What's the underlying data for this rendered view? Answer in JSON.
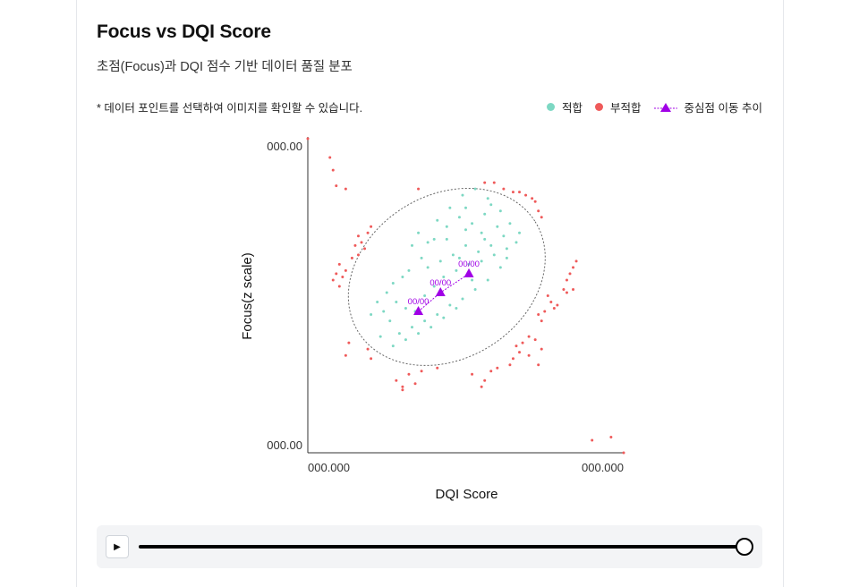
{
  "header": {
    "title": "Focus vs DQI Score",
    "subtitle": "초점(Focus)과 DQI 점수 기반 데이터 품질 분포",
    "note": "* 데이터 포인트를 선택하여 이미지를 확인할 수 있습니다."
  },
  "legend": {
    "pass_label": "적합",
    "fail_label": "부적합",
    "centroid_label": "중심점 이동 추이"
  },
  "colors": {
    "pass": "#7dd8c3",
    "fail": "#ef5a5a",
    "centroid": "#a000e6",
    "ellipse": "#666666"
  },
  "playback": {
    "play_icon": "▶",
    "progress": 1.0
  },
  "chart_data": {
    "type": "scatter",
    "title": "",
    "xlabel": "DQI Score",
    "ylabel": "Focus(z scale)",
    "x_tick_labels": [
      "000.000",
      "000.000"
    ],
    "y_tick_labels": [
      "000.00",
      "000.00"
    ],
    "xlim": [
      0,
      100
    ],
    "ylim": [
      0,
      100
    ],
    "legend_position": "top-right",
    "series": [
      {
        "name": "적합",
        "points": [
          [
            35,
            70
          ],
          [
            38,
            67
          ],
          [
            33,
            66
          ],
          [
            40,
            68
          ],
          [
            44,
            72
          ],
          [
            48,
            75
          ],
          [
            50,
            78
          ],
          [
            52,
            73
          ],
          [
            56,
            76
          ],
          [
            58,
            79
          ],
          [
            55,
            70
          ],
          [
            60,
            72
          ],
          [
            62,
            69
          ],
          [
            58,
            66
          ],
          [
            54,
            64
          ],
          [
            50,
            66
          ],
          [
            46,
            63
          ],
          [
            42,
            61
          ],
          [
            38,
            59
          ],
          [
            36,
            62
          ],
          [
            32,
            58
          ],
          [
            30,
            56
          ],
          [
            27,
            54
          ],
          [
            25,
            51
          ],
          [
            28,
            48
          ],
          [
            31,
            46
          ],
          [
            34,
            45
          ],
          [
            37,
            50
          ],
          [
            40,
            53
          ],
          [
            43,
            56
          ],
          [
            47,
            58
          ],
          [
            51,
            60
          ],
          [
            55,
            61
          ],
          [
            59,
            63
          ],
          [
            63,
            65
          ],
          [
            66,
            67
          ],
          [
            61,
            59
          ],
          [
            57,
            55
          ],
          [
            53,
            52
          ],
          [
            49,
            49
          ],
          [
            45,
            47
          ],
          [
            41,
            44
          ],
          [
            37,
            42
          ],
          [
            33,
            40
          ],
          [
            29,
            38
          ],
          [
            26,
            42
          ],
          [
            24,
            45
          ],
          [
            22,
            48
          ],
          [
            20,
            44
          ],
          [
            23,
            37
          ],
          [
            27,
            34
          ],
          [
            31,
            36
          ],
          [
            35,
            38
          ],
          [
            39,
            40
          ],
          [
            43,
            43
          ],
          [
            47,
            46
          ],
          [
            52,
            55
          ],
          [
            48,
            62
          ],
          [
            44,
            68
          ],
          [
            41,
            74
          ],
          [
            45,
            78
          ],
          [
            49,
            82
          ],
          [
            53,
            84
          ],
          [
            57,
            81
          ],
          [
            61,
            77
          ],
          [
            64,
            73
          ],
          [
            67,
            70
          ],
          [
            63,
            62
          ],
          [
            56,
            68
          ],
          [
            50,
            71
          ]
        ]
      },
      {
        "name": "부적합",
        "points": [
          [
            0,
            100
          ],
          [
            7,
            94
          ],
          [
            8,
            90
          ],
          [
            9,
            85
          ],
          [
            12,
            84
          ],
          [
            35,
            84
          ],
          [
            56,
            86
          ],
          [
            59,
            86
          ],
          [
            62,
            84
          ],
          [
            65,
            83
          ],
          [
            67,
            83
          ],
          [
            69,
            82
          ],
          [
            71,
            81
          ],
          [
            72,
            80
          ],
          [
            73,
            77
          ],
          [
            74,
            75
          ],
          [
            16,
            69
          ],
          [
            17,
            67
          ],
          [
            18,
            65
          ],
          [
            15,
            66
          ],
          [
            16,
            63
          ],
          [
            14,
            62
          ],
          [
            19,
            70
          ],
          [
            20,
            72
          ],
          [
            10,
            60
          ],
          [
            9,
            57
          ],
          [
            11,
            56
          ],
          [
            8,
            55
          ],
          [
            10,
            53
          ],
          [
            12,
            58
          ],
          [
            82,
            55
          ],
          [
            83,
            57
          ],
          [
            84,
            59
          ],
          [
            85,
            61
          ],
          [
            82,
            51
          ],
          [
            81,
            52
          ],
          [
            84,
            52
          ],
          [
            76,
            50
          ],
          [
            77,
            48
          ],
          [
            75,
            45
          ],
          [
            73,
            44
          ],
          [
            74,
            42
          ],
          [
            78,
            46
          ],
          [
            79,
            47
          ],
          [
            70,
            37
          ],
          [
            72,
            36
          ],
          [
            68,
            35
          ],
          [
            67,
            32
          ],
          [
            65,
            30
          ],
          [
            64,
            28
          ],
          [
            60,
            27
          ],
          [
            58,
            26
          ],
          [
            56,
            23
          ],
          [
            55,
            21
          ],
          [
            52,
            25
          ],
          [
            74,
            33
          ],
          [
            70,
            31
          ],
          [
            73,
            28
          ],
          [
            66,
            34
          ],
          [
            12,
            31
          ],
          [
            13,
            35
          ],
          [
            19,
            33
          ],
          [
            20,
            30
          ],
          [
            30,
            21
          ],
          [
            28,
            23
          ],
          [
            32,
            25
          ],
          [
            36,
            26
          ],
          [
            30,
            20
          ],
          [
            34,
            22
          ],
          [
            41,
            27
          ],
          [
            90,
            4
          ],
          [
            96,
            5
          ],
          [
            100,
            0
          ]
        ]
      }
    ],
    "centroid_trend": {
      "name": "중심점 이동 추이",
      "labels": [
        "00/00",
        "00/00",
        "00/00"
      ],
      "points": [
        [
          35,
          45
        ],
        [
          42,
          51
        ],
        [
          51,
          57
        ]
      ]
    },
    "ellipse": {
      "center": [
        44,
        56
      ],
      "semi_axis_x": 33,
      "semi_axis_y": 26,
      "rotation_deg": -32,
      "style": "dotted"
    }
  }
}
